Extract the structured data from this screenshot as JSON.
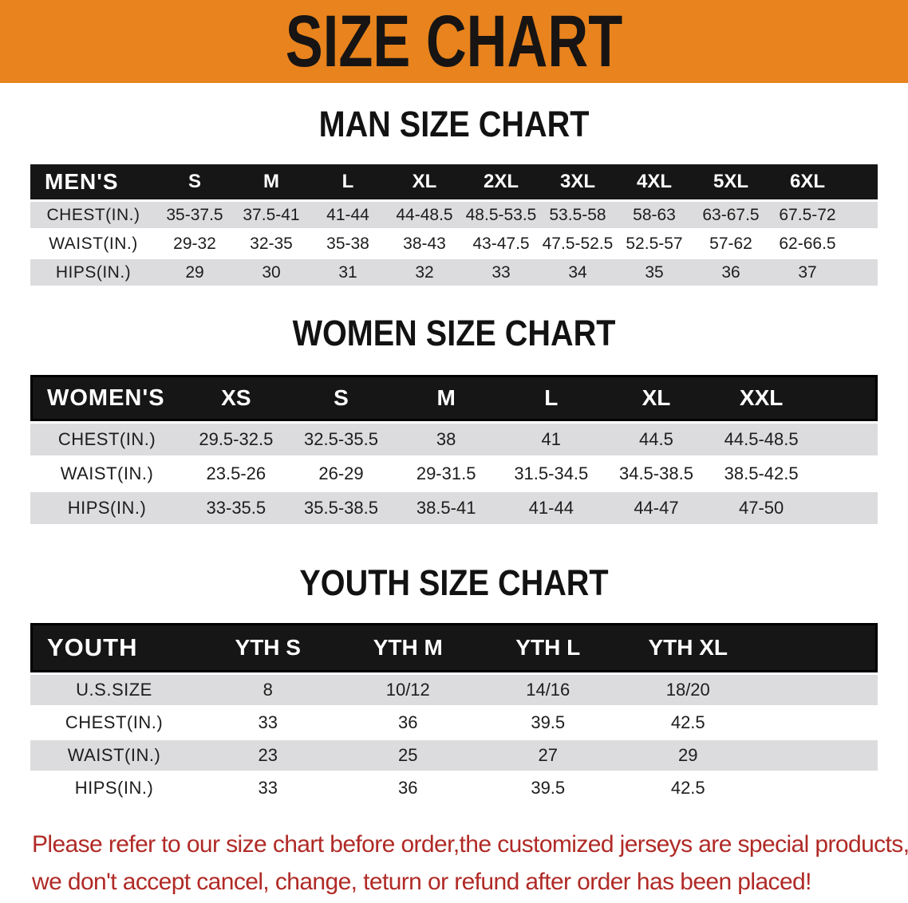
{
  "banner": {
    "title": "SIZE CHART",
    "bg_color": "#E8831D",
    "text_color": "#171413"
  },
  "sections": [
    {
      "heading": "MAN SIZE CHART",
      "label": "MEN'S",
      "columns": [
        "S",
        "M",
        "L",
        "XL",
        "2XL",
        "3XL",
        "4XL",
        "5XL",
        "6XL"
      ],
      "rows": [
        {
          "label": "CHEST(IN.)",
          "values": [
            "35-37.5",
            "37.5-41",
            "41-44",
            "44-48.5",
            "48.5-53.5",
            "53.5-58",
            "58-63",
            "63-67.5",
            "67.5-72"
          ]
        },
        {
          "label": "WAIST(IN.)",
          "values": [
            "29-32",
            "32-35",
            "35-38",
            "38-43",
            "43-47.5",
            "47.5-52.5",
            "52.5-57",
            "57-62",
            "62-66.5"
          ]
        },
        {
          "label": "HIPS(IN.)",
          "values": [
            "29",
            "30",
            "31",
            "32",
            "33",
            "34",
            "35",
            "36",
            "37"
          ]
        }
      ]
    },
    {
      "heading": "WOMEN SIZE CHART",
      "label": "WOMEN'S",
      "columns": [
        "XS",
        "S",
        "M",
        "L",
        "XL",
        "XXL"
      ],
      "rows": [
        {
          "label": "CHEST(IN.)",
          "values": [
            "29.5-32.5",
            "32.5-35.5",
            "38",
            "41",
            "44.5",
            "44.5-48.5"
          ]
        },
        {
          "label": "WAIST(IN.)",
          "values": [
            "23.5-26",
            "26-29",
            "29-31.5",
            "31.5-34.5",
            "34.5-38.5",
            "38.5-42.5"
          ]
        },
        {
          "label": "HIPS(IN.)",
          "values": [
            "33-35.5",
            "35.5-38.5",
            "38.5-41",
            "41-44",
            "44-47",
            "47-50"
          ]
        }
      ]
    },
    {
      "heading": "YOUTH SIZE CHART",
      "label": "YOUTH",
      "columns": [
        "YTH S",
        "YTH M",
        "YTH L",
        "YTH XL"
      ],
      "rows": [
        {
          "label": "U.S.SIZE",
          "values": [
            "8",
            "10/12",
            "14/16",
            "18/20"
          ]
        },
        {
          "label": "CHEST(IN.)",
          "values": [
            "33",
            "36",
            "39.5",
            "42.5"
          ]
        },
        {
          "label": "WAIST(IN.)",
          "values": [
            "23",
            "25",
            "27",
            "29"
          ]
        },
        {
          "label": "HIPS(IN.)",
          "values": [
            "33",
            "36",
            "39.5",
            "42.5"
          ]
        }
      ]
    }
  ],
  "footer": {
    "line1": "Please refer to our size chart before order,the customized jerseys are special products,",
    "line2": "we don't accept cancel, change, teturn or refund after order has been placed!",
    "text_color": "#B02A26"
  }
}
